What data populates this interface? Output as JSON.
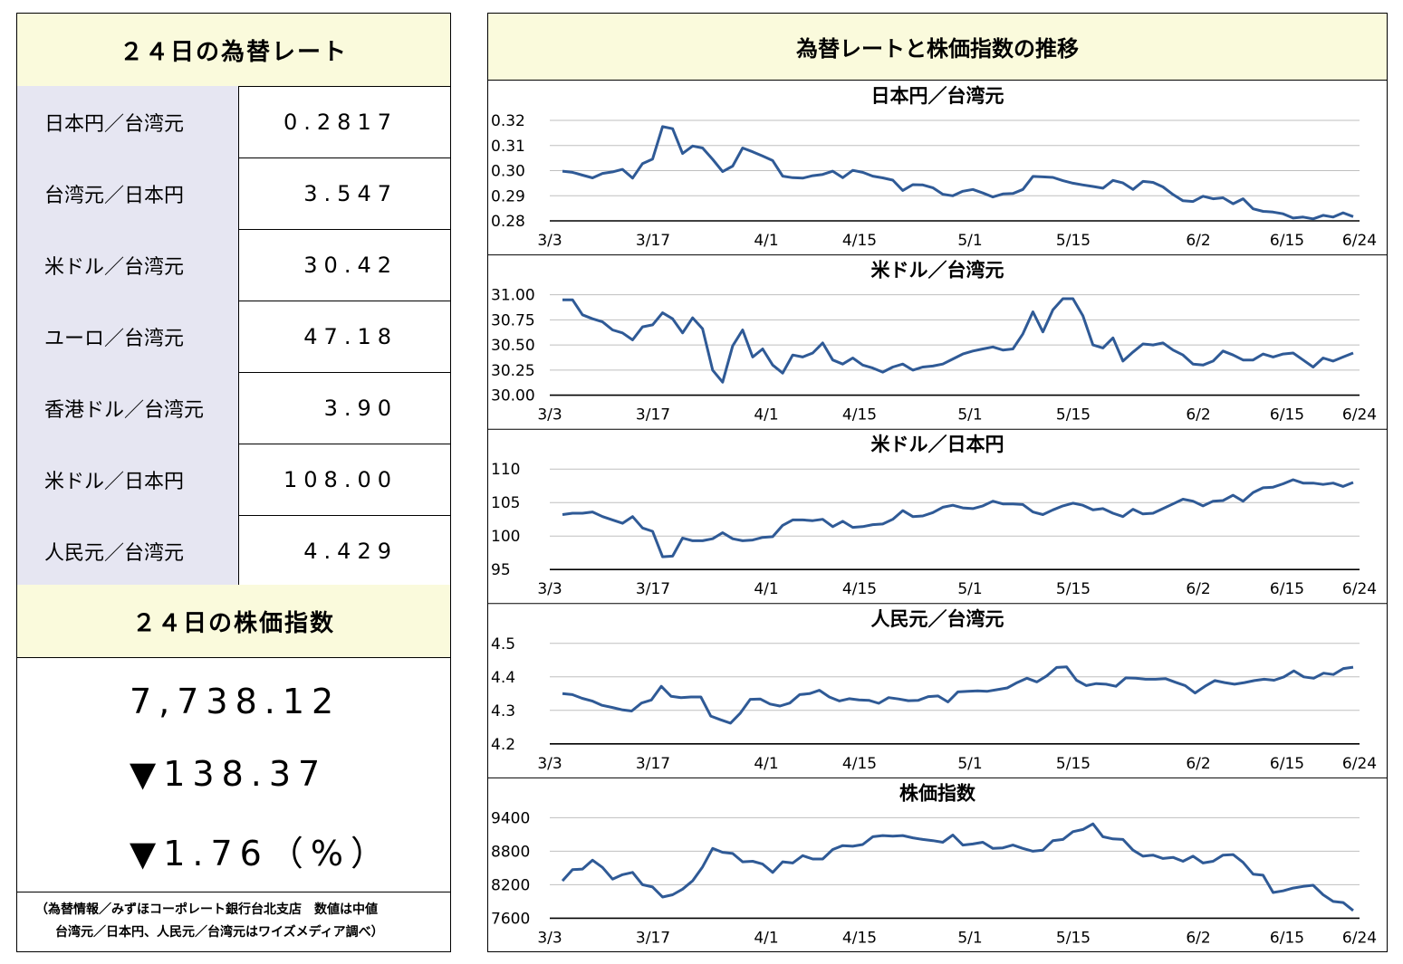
{
  "rates_table": {
    "title": "２４日の為替レート",
    "rows": [
      {
        "label": "日本円／台湾元",
        "value": "0.2817"
      },
      {
        "label": "台湾元／日本円",
        "value": "3.547"
      },
      {
        "label": "米ドル／台湾元",
        "value": "30.42"
      },
      {
        "label": "ユーロ／台湾元",
        "value": "47.18"
      },
      {
        "label": "香港ドル／台湾元",
        "value": "3.90"
      },
      {
        "label": "米ドル／日本円",
        "value": "108.00"
      },
      {
        "label": "人民元／台湾元",
        "value": "4.429"
      }
    ]
  },
  "stock": {
    "title": "２４日の株価指数",
    "value": "7,738.12",
    "change": "▼138.37",
    "change_pct": "▼1.76（%）"
  },
  "notes": {
    "line1": "（為替情報／みずほコーポレート銀行台北支店　数値は中値",
    "line2": "台湾元／日本円、人民元／台湾元はワイズメディア調べ）"
  },
  "charts_title": "為替レートと株価指数の推移",
  "colors": {
    "line": "#2f5a96",
    "grid": "#bfbfbf",
    "header_bg": "#fafadc",
    "label_bg": "#e6e6f2"
  },
  "chart_data": [
    {
      "type": "line",
      "title": "日本円／台湾元",
      "xticks": [
        "3/3",
        "3/17",
        "4/1",
        "4/15",
        "5/1",
        "5/15",
        "6/2",
        "6/15",
        "6/24"
      ],
      "yticks": [
        "0.32",
        "0.31",
        "0.30",
        "0.29",
        "0.28"
      ],
      "ylim": [
        0.28,
        0.32
      ],
      "values": [
        0.2998,
        0.2993,
        0.2982,
        0.2971,
        0.2989,
        0.2995,
        0.3005,
        0.297,
        0.3028,
        0.3046,
        0.3175,
        0.3167,
        0.3068,
        0.3098,
        0.309,
        0.3045,
        0.2996,
        0.3018,
        0.309,
        0.3075,
        0.3058,
        0.304,
        0.2978,
        0.2972,
        0.297,
        0.298,
        0.2985,
        0.2998,
        0.2972,
        0.3001,
        0.2993,
        0.2978,
        0.2971,
        0.2962,
        0.2921,
        0.2944,
        0.2943,
        0.2932,
        0.2906,
        0.29,
        0.2918,
        0.2925,
        0.2911,
        0.2895,
        0.2907,
        0.2909,
        0.2925,
        0.2977,
        0.2975,
        0.2973,
        0.296,
        0.295,
        0.2943,
        0.2937,
        0.293,
        0.2961,
        0.2951,
        0.2925,
        0.2957,
        0.2953,
        0.2935,
        0.2905,
        0.288,
        0.2877,
        0.2898,
        0.2888,
        0.2892,
        0.2868,
        0.2888,
        0.2848,
        0.2838,
        0.2835,
        0.2828,
        0.2811,
        0.2815,
        0.2808,
        0.2822,
        0.2815,
        0.2832,
        0.2817
      ]
    },
    {
      "type": "line",
      "title": "米ドル／台湾元",
      "xticks": [
        "3/3",
        "3/17",
        "4/1",
        "4/15",
        "5/1",
        "5/15",
        "6/2",
        "6/15",
        "6/24"
      ],
      "yticks": [
        "31.00",
        "30.75",
        "30.50",
        "30.25",
        "30.00"
      ],
      "ylim": [
        30.0,
        31.0
      ],
      "values": [
        30.95,
        30.95,
        30.8,
        30.76,
        30.73,
        30.65,
        30.62,
        30.55,
        30.68,
        30.7,
        30.82,
        30.76,
        30.62,
        30.77,
        30.66,
        30.25,
        30.13,
        30.49,
        30.65,
        30.38,
        30.46,
        30.3,
        30.22,
        30.4,
        30.38,
        30.42,
        30.52,
        30.35,
        30.31,
        30.37,
        30.3,
        30.27,
        30.23,
        30.28,
        30.31,
        30.25,
        30.28,
        30.29,
        30.31,
        30.36,
        30.41,
        30.44,
        30.46,
        30.48,
        30.45,
        30.46,
        30.61,
        30.83,
        30.63,
        30.85,
        30.96,
        30.96,
        30.79,
        30.5,
        30.47,
        30.57,
        30.34,
        30.43,
        30.51,
        30.5,
        30.52,
        30.45,
        30.4,
        30.31,
        30.3,
        30.34,
        30.44,
        30.4,
        30.35,
        30.35,
        30.41,
        30.38,
        30.41,
        30.42,
        30.35,
        30.28,
        30.37,
        30.34,
        30.38,
        30.42
      ]
    },
    {
      "type": "line",
      "title": "米ドル／日本円",
      "xticks": [
        "3/3",
        "3/17",
        "4/1",
        "4/15",
        "5/1",
        "5/15",
        "6/2",
        "6/15",
        "6/24"
      ],
      "yticks": [
        "110",
        "105",
        "100",
        "95"
      ],
      "ylim": [
        95,
        110
      ],
      "values": [
        103.2,
        103.4,
        103.4,
        103.6,
        102.9,
        102.4,
        101.9,
        102.9,
        101.2,
        100.7,
        96.9,
        97.0,
        99.7,
        99.3,
        99.3,
        99.6,
        100.5,
        99.6,
        99.3,
        99.4,
        99.8,
        99.9,
        101.6,
        102.4,
        102.4,
        102.3,
        102.5,
        101.4,
        102.2,
        101.3,
        101.4,
        101.7,
        101.8,
        102.5,
        103.8,
        102.9,
        103.0,
        103.5,
        104.3,
        104.6,
        104.2,
        104.1,
        104.5,
        105.2,
        104.8,
        104.8,
        104.7,
        103.6,
        103.2,
        103.9,
        104.5,
        104.9,
        104.6,
        103.9,
        104.1,
        103.4,
        102.9,
        104.0,
        103.3,
        103.4,
        104.1,
        104.8,
        105.5,
        105.2,
        104.5,
        105.2,
        105.3,
        106.1,
        105.2,
        106.5,
        107.2,
        107.3,
        107.8,
        108.4,
        107.9,
        107.9,
        107.7,
        107.9,
        107.4,
        108.0
      ]
    },
    {
      "type": "line",
      "title": "人民元／台湾元",
      "xticks": [
        "3/3",
        "3/17",
        "4/1",
        "4/15",
        "5/1",
        "5/15",
        "6/2",
        "6/15",
        "6/24"
      ],
      "yticks": [
        "4.5",
        "4.4",
        "4.3",
        "4.2"
      ],
      "ylim": [
        4.2,
        4.5
      ],
      "values": [
        4.35,
        4.347,
        4.336,
        4.328,
        4.315,
        4.309,
        4.302,
        4.298,
        4.322,
        4.331,
        4.372,
        4.342,
        4.338,
        4.34,
        4.34,
        4.283,
        4.272,
        4.262,
        4.292,
        4.333,
        4.334,
        4.319,
        4.313,
        4.322,
        4.347,
        4.35,
        4.36,
        4.34,
        4.328,
        4.335,
        4.331,
        4.33,
        4.321,
        4.338,
        4.334,
        4.329,
        4.33,
        4.341,
        4.343,
        4.325,
        4.355,
        4.357,
        4.358,
        4.357,
        4.362,
        4.367,
        4.383,
        4.396,
        4.385,
        4.403,
        4.428,
        4.43,
        4.39,
        4.374,
        4.38,
        4.378,
        4.372,
        4.397,
        4.396,
        4.393,
        4.393,
        4.395,
        4.384,
        4.374,
        4.352,
        4.372,
        4.389,
        4.383,
        4.378,
        4.383,
        4.389,
        4.393,
        4.39,
        4.4,
        4.418,
        4.4,
        4.396,
        4.411,
        4.407,
        4.425,
        4.429
      ]
    },
    {
      "type": "line",
      "title": "株価指数",
      "xticks": [
        "3/3",
        "3/17",
        "4/1",
        "4/15",
        "5/1",
        "5/15",
        "6/2",
        "6/15",
        "6/24"
      ],
      "yticks": [
        "9400",
        "8800",
        "8200",
        "7600"
      ],
      "ylim": [
        7600,
        9400
      ],
      "values": [
        8270,
        8470,
        8480,
        8640,
        8510,
        8300,
        8380,
        8420,
        8200,
        8160,
        7980,
        8020,
        8120,
        8270,
        8520,
        8850,
        8780,
        8760,
        8610,
        8620,
        8570,
        8420,
        8610,
        8590,
        8720,
        8660,
        8660,
        8830,
        8900,
        8890,
        8920,
        9060,
        9080,
        9070,
        9080,
        9040,
        9010,
        8990,
        8960,
        9090,
        8910,
        8930,
        8960,
        8850,
        8860,
        8910,
        8850,
        8800,
        8820,
        8990,
        9010,
        9150,
        9190,
        9290,
        9060,
        9020,
        9010,
        8820,
        8710,
        8730,
        8670,
        8690,
        8620,
        8710,
        8590,
        8620,
        8730,
        8740,
        8600,
        8390,
        8370,
        8060,
        8090,
        8140,
        8170,
        8190,
        8020,
        7900,
        7880,
        7738
      ]
    }
  ]
}
